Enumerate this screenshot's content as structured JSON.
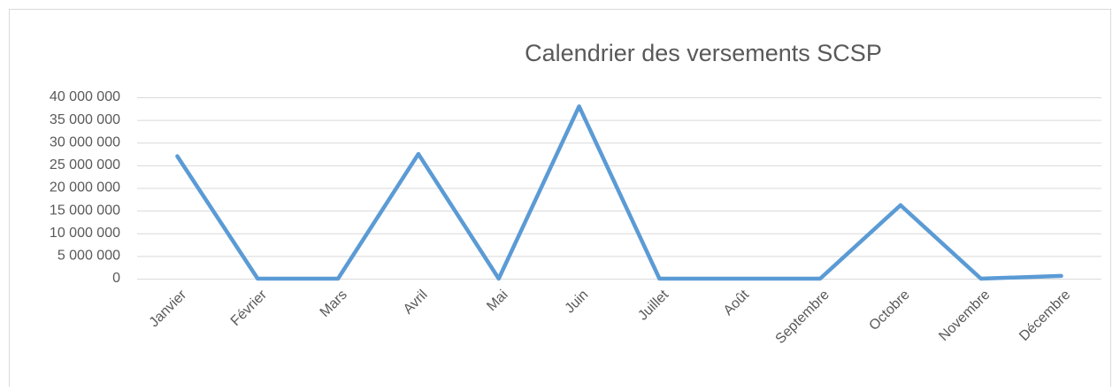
{
  "chart_data": {
    "type": "line",
    "title": "Calendrier des versements SCSP",
    "categories": [
      "Janvier",
      "Février",
      "Mars",
      "Avril",
      "Mai",
      "Juin",
      "Juillet",
      "Août",
      "Septembre",
      "Octobre",
      "Novembre",
      "Décembre"
    ],
    "series": [
      {
        "name": "SCSP",
        "color": "#5b9bd5",
        "values": [
          27000000,
          0,
          0,
          27500000,
          0,
          38000000,
          0,
          0,
          0,
          16200000,
          0,
          600000
        ]
      }
    ],
    "ylim": [
      0,
      40000000
    ],
    "yticks": [
      0,
      {
        "value": 5000000,
        "label": "5 000 000"
      },
      {
        "value": 10000000,
        "label": "10 000 000"
      },
      {
        "value": 15000000,
        "label": "15 000 000"
      },
      {
        "value": 20000000,
        "label": "20 000 000"
      },
      {
        "value": 25000000,
        "label": "25 000 000"
      },
      {
        "value": 30000000,
        "label": "30 000 000"
      },
      {
        "value": 35000000,
        "label": "35 000 000"
      },
      {
        "value": 40000000,
        "label": "40 000 000"
      }
    ],
    "grid": true
  }
}
